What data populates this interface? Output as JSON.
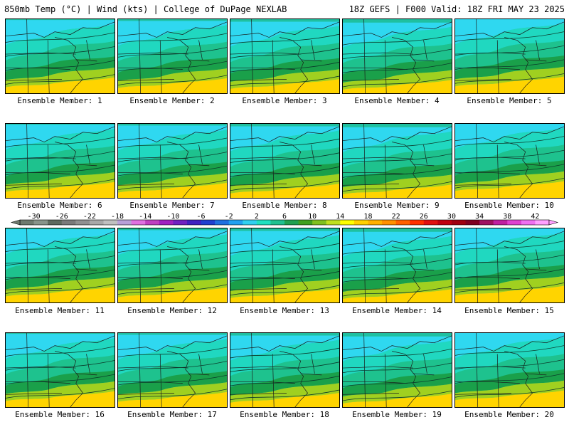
{
  "header": {
    "left": "850mb Temp (°C) | Wind (kts) | College of DuPage NEXLAB",
    "right": "18Z GEFS | F000 Valid: 18Z FRI MAY 23 2025"
  },
  "panels": [
    {
      "label": "Ensemble Member: 1"
    },
    {
      "label": "Ensemble Member: 2"
    },
    {
      "label": "Ensemble Member: 3"
    },
    {
      "label": "Ensemble Member: 4"
    },
    {
      "label": "Ensemble Member: 5"
    },
    {
      "label": "Ensemble Member: 6"
    },
    {
      "label": "Ensemble Member: 7"
    },
    {
      "label": "Ensemble Member: 8"
    },
    {
      "label": "Ensemble Member: 9"
    },
    {
      "label": "Ensemble Member: 10"
    },
    {
      "label": "Ensemble Member: 11"
    },
    {
      "label": "Ensemble Member: 12"
    },
    {
      "label": "Ensemble Member: 13"
    },
    {
      "label": "Ensemble Member: 14"
    },
    {
      "label": "Ensemble Member: 15"
    },
    {
      "label": "Ensemble Member: 16"
    },
    {
      "label": "Ensemble Member: 17"
    },
    {
      "label": "Ensemble Member: 18"
    },
    {
      "label": "Ensemble Member: 19"
    },
    {
      "label": "Ensemble Member: 20"
    }
  ],
  "colorbar": {
    "ticks": [
      "-30",
      "-26",
      "-22",
      "-18",
      "-14",
      "-10",
      "-6",
      "-2",
      "2",
      "6",
      "10",
      "14",
      "18",
      "22",
      "26",
      "30",
      "34",
      "38",
      "42"
    ],
    "colors": [
      "#6e7a6e",
      "#88948a",
      "#5e6a5e",
      "#7a7a7a",
      "#909090",
      "#a8a8a8",
      "#c0c0c0",
      "#b8a0d8",
      "#e070e0",
      "#c040c0",
      "#a020c0",
      "#7020c0",
      "#4020c0",
      "#2040d0",
      "#2070e0",
      "#20a0f0",
      "#30d0f0",
      "#20e0c0",
      "#20c090",
      "#20a050",
      "#40a020",
      "#80c020",
      "#c0e020",
      "#ffff00",
      "#ffd000",
      "#ffb000",
      "#ff9000",
      "#ff6000",
      "#ff3000",
      "#e01010",
      "#c00010",
      "#a00010",
      "#800020",
      "#a01060",
      "#c020a0",
      "#e040d0",
      "#f070f0",
      "#ffa0ff"
    ]
  }
}
